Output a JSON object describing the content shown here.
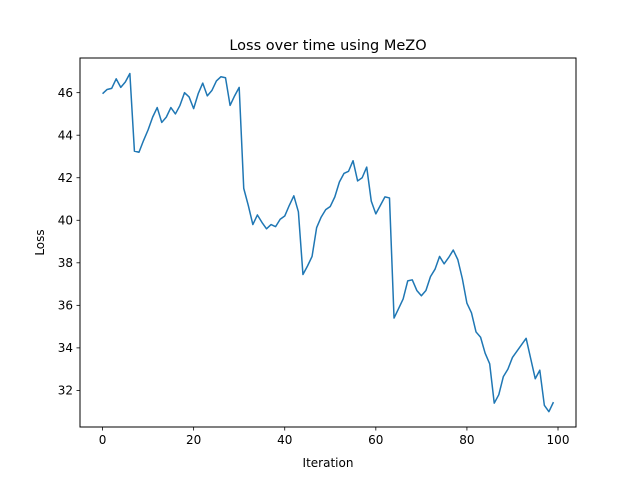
{
  "chart_data": {
    "type": "line",
    "title": "Loss over time using MeZO",
    "xlabel": "Iteration",
    "ylabel": "Loss",
    "xlim": [
      -4.95,
      103.95
    ],
    "ylim": [
      30.28,
      47.63
    ],
    "xticks": [
      0,
      20,
      40,
      60,
      80,
      100
    ],
    "yticks": [
      32,
      34,
      36,
      38,
      40,
      42,
      44,
      46
    ],
    "grid": false,
    "legend": "none",
    "series": [
      {
        "color": "#1f77b4",
        "x": [
          0,
          1,
          2,
          3,
          4,
          5,
          6,
          7,
          8,
          9,
          10,
          11,
          12,
          13,
          14,
          15,
          16,
          17,
          18,
          19,
          20,
          21,
          22,
          23,
          24,
          25,
          26,
          27,
          28,
          29,
          30,
          31,
          32,
          33,
          34,
          35,
          36,
          37,
          38,
          39,
          40,
          41,
          42,
          43,
          44,
          45,
          46,
          47,
          48,
          49,
          50,
          51,
          52,
          53,
          54,
          55,
          56,
          57,
          58,
          59,
          60,
          61,
          62,
          63,
          64,
          65,
          66,
          67,
          68,
          69,
          70,
          71,
          72,
          73,
          74,
          75,
          76,
          77,
          78,
          79,
          80,
          81,
          82,
          83,
          84,
          85,
          86,
          87,
          88,
          89,
          90,
          91,
          92,
          93,
          94,
          95,
          96,
          97,
          98,
          99
        ],
        "y": [
          45.95,
          46.15,
          46.2,
          46.65,
          46.25,
          46.5,
          46.9,
          43.25,
          43.2,
          43.75,
          44.25,
          44.85,
          45.3,
          44.6,
          44.85,
          45.3,
          45.0,
          45.4,
          46.0,
          45.8,
          45.25,
          45.95,
          46.45,
          45.85,
          46.1,
          46.55,
          46.75,
          46.7,
          45.4,
          45.85,
          46.25,
          41.5,
          40.7,
          39.8,
          40.25,
          39.9,
          39.6,
          39.8,
          39.7,
          40.05,
          40.2,
          40.7,
          41.15,
          40.4,
          37.45,
          37.85,
          38.3,
          39.65,
          40.15,
          40.5,
          40.65,
          41.1,
          41.8,
          42.2,
          42.3,
          42.8,
          41.85,
          42.0,
          42.5,
          40.9,
          40.3,
          40.7,
          41.1,
          41.05,
          35.4,
          35.85,
          36.3,
          37.15,
          37.2,
          36.7,
          36.45,
          36.7,
          37.35,
          37.7,
          38.3,
          37.95,
          38.25,
          38.6,
          38.15,
          37.25,
          36.1,
          35.65,
          34.75,
          34.5,
          33.75,
          33.25,
          31.4,
          31.8,
          32.65,
          33.0,
          33.55,
          33.85,
          34.15,
          34.45,
          33.5,
          32.55,
          32.95,
          31.3,
          31.0,
          31.45
        ]
      }
    ]
  }
}
